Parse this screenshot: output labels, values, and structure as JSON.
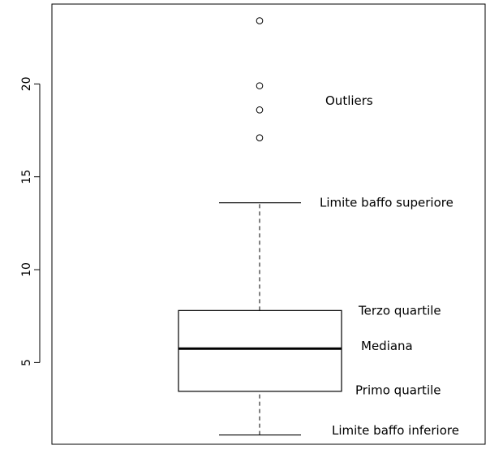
{
  "chart_data": {
    "type": "boxplot",
    "title": "",
    "xlabel": "",
    "ylabel": "",
    "ylim": [
      0.6,
      24.3
    ],
    "yticks": [
      5,
      10,
      15,
      20
    ],
    "ytick_labels": [
      "5",
      "10",
      "15",
      "20"
    ],
    "box": {
      "lower_whisker": 1.1,
      "q1": 3.45,
      "median": 5.75,
      "q3": 7.8,
      "upper_whisker": 13.6
    },
    "outliers": [
      17.1,
      18.6,
      19.9,
      23.4
    ],
    "annotations": [
      {
        "key": "outliers",
        "text": "Outliers",
        "y": 19.1
      },
      {
        "key": "upper_whisker",
        "text": "Limite baffo superiore",
        "y": 13.6
      },
      {
        "key": "q3",
        "text": "Terzo quartile",
        "y": 7.8
      },
      {
        "key": "median",
        "text": "Mediana",
        "y": 5.9
      },
      {
        "key": "q1",
        "text": "Primo quartile",
        "y": 3.5
      },
      {
        "key": "lower_whisker",
        "text": "Limite baffo inferiore",
        "y": 1.35
      }
    ],
    "grid": false,
    "legend": "none"
  }
}
